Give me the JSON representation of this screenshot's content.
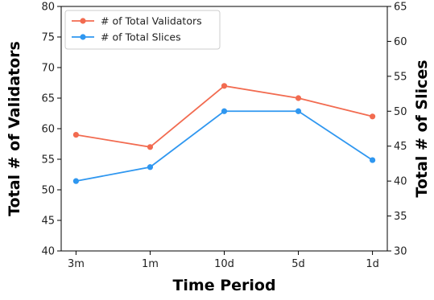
{
  "chart_data": {
    "type": "line",
    "categories": [
      "3m",
      "1m",
      "10d",
      "5d",
      "1d"
    ],
    "xlabel": "Time Period",
    "ylabel_left": "Total # of Validators",
    "ylabel_right": "Total # of Slices",
    "ylim_left": [
      40,
      80
    ],
    "yticks_left": [
      40,
      45,
      50,
      55,
      60,
      65,
      70,
      75,
      80
    ],
    "ylim_right": [
      30,
      65
    ],
    "yticks_right": [
      30,
      35,
      40,
      45,
      50,
      55,
      60,
      65
    ],
    "grid": false,
    "legend_position": "top-left",
    "series": [
      {
        "name": "# of Total Validators",
        "axis": "left",
        "color": "#f26b50",
        "values": [
          59,
          57,
          67,
          65,
          62
        ]
      },
      {
        "name": "# of Total Slices",
        "axis": "right",
        "color": "#2f97f0",
        "values": [
          40,
          42,
          50,
          50,
          43
        ]
      }
    ]
  }
}
